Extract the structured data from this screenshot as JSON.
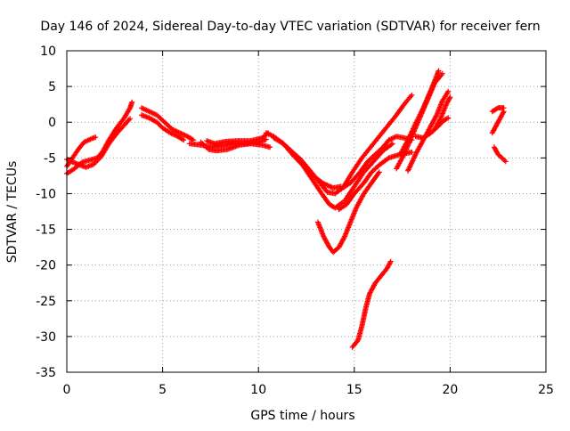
{
  "chart_data": {
    "type": "scatter",
    "title": "Day 146 of 2024, Sidereal Day-to-day VTEC variation (SDTVAR) for receiver fern",
    "xlabel": "GPS time / hours",
    "ylabel": "SDTVAR / TECUs",
    "xlim": [
      0,
      25
    ],
    "ylim": [
      -35,
      10
    ],
    "xticks": [
      0,
      5,
      10,
      15,
      20,
      25
    ],
    "yticks": [
      -35,
      -30,
      -25,
      -20,
      -15,
      -10,
      -5,
      0,
      5,
      10
    ],
    "grid": true,
    "legend": "none",
    "marker": "+",
    "color": "#ff0000",
    "series": [
      {
        "points": [
          [
            0.0,
            -6.2
          ],
          [
            0.3,
            -5.0
          ],
          [
            0.6,
            -3.8
          ],
          [
            0.9,
            -2.8
          ],
          [
            1.3,
            -2.3
          ],
          [
            1.5,
            -2.1
          ]
        ]
      },
      {
        "points": [
          [
            0.0,
            -7.2
          ],
          [
            0.4,
            -6.5
          ],
          [
            0.8,
            -5.6
          ],
          [
            1.2,
            -5.3
          ],
          [
            1.6,
            -5.0
          ],
          [
            1.9,
            -4.0
          ],
          [
            2.2,
            -2.5
          ],
          [
            2.6,
            -0.8
          ],
          [
            3.0,
            0.6
          ],
          [
            3.3,
            2.0
          ],
          [
            3.4,
            2.8
          ]
        ]
      },
      {
        "points": [
          [
            0.0,
            -5.2
          ],
          [
            0.5,
            -5.8
          ],
          [
            1.0,
            -6.3
          ],
          [
            1.4,
            -5.9
          ],
          [
            1.8,
            -4.8
          ],
          [
            2.2,
            -3.0
          ],
          [
            2.6,
            -1.6
          ],
          [
            3.0,
            -0.4
          ],
          [
            3.3,
            0.5
          ]
        ]
      },
      {
        "points": [
          [
            3.9,
            2.0
          ],
          [
            4.3,
            1.5
          ],
          [
            4.7,
            1.0
          ],
          [
            5.1,
            0.0
          ],
          [
            5.5,
            -1.0
          ],
          [
            5.9,
            -1.5
          ],
          [
            6.3,
            -2.0
          ],
          [
            6.6,
            -2.5
          ]
        ]
      },
      {
        "points": [
          [
            3.9,
            1.0
          ],
          [
            4.3,
            0.6
          ],
          [
            4.7,
            0.0
          ],
          [
            5.0,
            -0.8
          ],
          [
            5.4,
            -1.5
          ],
          [
            5.8,
            -2.0
          ],
          [
            6.1,
            -2.5
          ]
        ]
      },
      {
        "points": [
          [
            6.4,
            -3.0
          ],
          [
            7.0,
            -3.2
          ],
          [
            7.6,
            -3.5
          ],
          [
            8.2,
            -3.3
          ],
          [
            8.8,
            -3.0
          ],
          [
            9.4,
            -3.0
          ],
          [
            10.0,
            -2.8
          ],
          [
            10.4,
            -2.4
          ]
        ]
      },
      {
        "points": [
          [
            7.0,
            -2.8
          ],
          [
            7.4,
            -3.8
          ],
          [
            7.8,
            -4.0
          ],
          [
            8.4,
            -3.8
          ],
          [
            9.0,
            -3.2
          ],
          [
            9.6,
            -3.0
          ],
          [
            10.2,
            -3.2
          ],
          [
            10.6,
            -3.5
          ]
        ]
      },
      {
        "points": [
          [
            7.3,
            -2.6
          ],
          [
            7.7,
            -3.0
          ],
          [
            8.3,
            -2.7
          ],
          [
            9.0,
            -2.6
          ],
          [
            9.6,
            -2.6
          ],
          [
            10.2,
            -2.2
          ],
          [
            10.5,
            -1.5
          ]
        ]
      },
      {
        "points": [
          [
            10.4,
            -1.5
          ],
          [
            10.8,
            -2.0
          ],
          [
            11.2,
            -2.8
          ],
          [
            11.7,
            -4.0
          ],
          [
            12.2,
            -5.2
          ],
          [
            12.7,
            -6.8
          ],
          [
            13.2,
            -8.5
          ],
          [
            13.6,
            -9.8
          ],
          [
            14.0,
            -10.0
          ],
          [
            14.4,
            -9.2
          ],
          [
            14.8,
            -8.5
          ]
        ]
      },
      {
        "points": [
          [
            10.8,
            -2.2
          ],
          [
            11.3,
            -3.0
          ],
          [
            11.8,
            -4.6
          ],
          [
            12.3,
            -6.0
          ],
          [
            12.8,
            -8.0
          ],
          [
            13.3,
            -10.0
          ],
          [
            13.7,
            -11.5
          ],
          [
            14.0,
            -12.0
          ],
          [
            14.4,
            -11.2
          ]
        ]
      },
      {
        "points": [
          [
            11.5,
            -3.5
          ],
          [
            12.0,
            -5.0
          ],
          [
            12.5,
            -6.5
          ],
          [
            13.0,
            -7.8
          ],
          [
            13.4,
            -8.6
          ],
          [
            13.9,
            -9.2
          ],
          [
            14.3,
            -9.0
          ]
        ]
      },
      {
        "points": [
          [
            14.8,
            -8.5
          ],
          [
            15.3,
            -7.0
          ],
          [
            15.7,
            -5.5
          ],
          [
            16.1,
            -4.5
          ],
          [
            16.5,
            -3.5
          ],
          [
            16.8,
            -2.5
          ],
          [
            17.2,
            -2.0
          ],
          [
            17.6,
            -2.2
          ],
          [
            18.0,
            -2.5
          ]
        ]
      },
      {
        "points": [
          [
            14.4,
            -9.2
          ],
          [
            14.9,
            -7.0
          ],
          [
            15.4,
            -5.0
          ],
          [
            16.0,
            -3.0
          ],
          [
            16.6,
            -1.0
          ],
          [
            17.2,
            1.0
          ],
          [
            17.6,
            2.5
          ],
          [
            18.0,
            3.8
          ]
        ]
      },
      {
        "points": [
          [
            14.2,
            -12.2
          ],
          [
            14.6,
            -11.5
          ],
          [
            15.0,
            -10.0
          ],
          [
            15.5,
            -8.5
          ],
          [
            15.9,
            -7.0
          ],
          [
            16.3,
            -6.0
          ],
          [
            16.8,
            -5.0
          ],
          [
            17.4,
            -4.5
          ],
          [
            18.0,
            -4.2
          ]
        ]
      },
      {
        "points": [
          [
            14.5,
            -11.0
          ],
          [
            15.0,
            -9.0
          ],
          [
            15.5,
            -7.0
          ],
          [
            16.0,
            -5.5
          ],
          [
            16.5,
            -4.0
          ],
          [
            17.0,
            -3.0
          ]
        ]
      },
      {
        "points": [
          [
            13.1,
            -14.0
          ],
          [
            13.4,
            -16.0
          ],
          [
            13.7,
            -17.5
          ],
          [
            13.9,
            -18.2
          ],
          [
            14.2,
            -17.5
          ],
          [
            14.5,
            -16.0
          ],
          [
            14.8,
            -14.0
          ],
          [
            15.1,
            -12.0
          ],
          [
            15.5,
            -10.0
          ],
          [
            15.9,
            -8.5
          ],
          [
            16.3,
            -7.0
          ]
        ]
      },
      {
        "points": [
          [
            14.9,
            -31.5
          ],
          [
            15.2,
            -30.5
          ],
          [
            15.4,
            -28.5
          ],
          [
            15.6,
            -26.0
          ],
          [
            15.8,
            -24.0
          ],
          [
            16.1,
            -22.5
          ],
          [
            16.4,
            -21.5
          ],
          [
            16.7,
            -20.5
          ],
          [
            16.9,
            -19.5
          ]
        ]
      },
      {
        "points": [
          [
            17.2,
            -6.5
          ],
          [
            17.6,
            -4.5
          ],
          [
            18.0,
            -2.0
          ],
          [
            18.4,
            0.5
          ],
          [
            18.8,
            3.0
          ],
          [
            19.2,
            5.5
          ],
          [
            19.6,
            6.8
          ]
        ]
      },
      {
        "points": [
          [
            17.4,
            -4.5
          ],
          [
            17.8,
            -2.5
          ],
          [
            18.2,
            -0.2
          ],
          [
            18.6,
            2.0
          ],
          [
            19.0,
            4.5
          ],
          [
            19.3,
            6.5
          ],
          [
            19.4,
            7.2
          ]
        ]
      },
      {
        "points": [
          [
            17.8,
            -6.8
          ],
          [
            18.2,
            -4.5
          ],
          [
            18.6,
            -2.5
          ],
          [
            19.0,
            -0.5
          ],
          [
            19.3,
            1.0
          ],
          [
            19.6,
            3.0
          ],
          [
            19.9,
            4.3
          ]
        ]
      },
      {
        "points": [
          [
            18.2,
            -2.0
          ],
          [
            18.6,
            -2.2
          ],
          [
            19.0,
            -1.5
          ],
          [
            19.4,
            -0.5
          ],
          [
            19.7,
            0.3
          ],
          [
            19.9,
            0.6
          ]
        ]
      },
      {
        "points": [
          [
            19.2,
            -1.0
          ],
          [
            19.5,
            0.5
          ],
          [
            19.8,
            2.5
          ],
          [
            20.0,
            3.5
          ]
        ]
      },
      {
        "points": [
          [
            22.2,
            1.5
          ],
          [
            22.5,
            2.0
          ],
          [
            22.8,
            2.0
          ]
        ]
      },
      {
        "points": [
          [
            22.3,
            -3.5
          ],
          [
            22.5,
            -4.5
          ],
          [
            22.7,
            -5.0
          ],
          [
            22.9,
            -5.5
          ]
        ]
      },
      {
        "points": [
          [
            22.2,
            -1.5
          ],
          [
            22.4,
            -0.5
          ],
          [
            22.6,
            0.5
          ],
          [
            22.8,
            1.5
          ]
        ]
      }
    ]
  }
}
